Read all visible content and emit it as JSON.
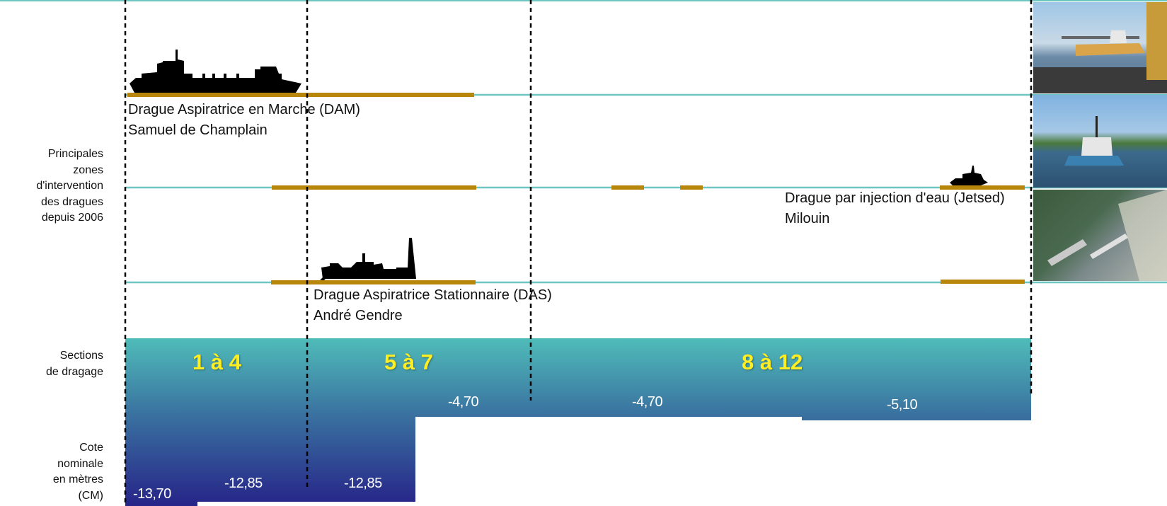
{
  "left_labels": {
    "zones": [
      "Principales",
      "zones",
      "d'intervention",
      "des dragues",
      "depuis 2006"
    ],
    "sections": [
      "Sections",
      "de dragage"
    ],
    "cote": [
      "Cote",
      "nominale",
      "en mètres",
      "(CM)"
    ]
  },
  "dredges": {
    "dam": {
      "type": "Drague Aspiratrice en Marche (DAM)",
      "name": "Samuel de Champlain"
    },
    "jetsed": {
      "type": "Drague par injection d'eau (Jetsed)",
      "name": "Milouin"
    },
    "das": {
      "type": "Drague Aspiratrice Stationnaire (DAS)",
      "name": "André Gendre"
    }
  },
  "sections": [
    "1 à 4",
    "5 à 7",
    "8 à 12"
  ],
  "depths": {
    "d1": "-13,70",
    "d2": "-12,85",
    "d3": "-12,85",
    "d4": "-4,70",
    "d5": "-4,70",
    "d6": "-5,10"
  },
  "colors": {
    "line": "#6ec6c1",
    "zone_bar": "#b8860b",
    "section_label": "#ffee22",
    "gradient_top": "#4db8b8",
    "gradient_bottom": "#2a2a88"
  }
}
